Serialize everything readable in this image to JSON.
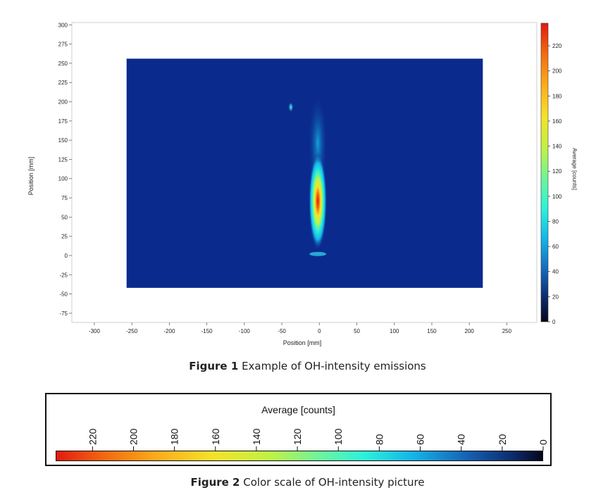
{
  "figure1": {
    "caption_label": "Figure 1",
    "caption_text": "Example of OH-intensity emissions"
  },
  "figure2": {
    "caption_label": "Figure 2",
    "caption_text": "Color scale of OH-intensity picture",
    "title": "Average [counts]",
    "ticks": [
      "220",
      "200",
      "180",
      "160",
      "140",
      "120",
      "100",
      "80",
      "60",
      "40",
      "20",
      "0"
    ]
  },
  "chart_data": {
    "type": "heatmap",
    "xlabel": "Position [mm]",
    "ylabel": "Position [mm]",
    "colorbar_label": "Average [counts]",
    "xlim": [
      -330,
      290
    ],
    "ylim": [
      -87,
      303
    ],
    "xticks": [
      -300,
      -250,
      -200,
      -150,
      -100,
      -50,
      0,
      50,
      100,
      150,
      200,
      250
    ],
    "yticks": [
      300,
      275,
      250,
      225,
      200,
      175,
      150,
      125,
      100,
      75,
      50,
      25,
      0,
      -25,
      -50,
      -75
    ],
    "colorbar_range": [
      0,
      238
    ],
    "colorbar_ticks": [
      220,
      200,
      180,
      160,
      140,
      120,
      100,
      80,
      60,
      40,
      20,
      0
    ],
    "image_extent": {
      "x": [
        -257,
        218
      ],
      "y": [
        -42,
        256
      ]
    },
    "background_level": 10,
    "features": [
      {
        "name": "flame",
        "x_center": -2,
        "y_base": 2,
        "y_top": 180,
        "peak_y": 72,
        "peak_value": 230
      },
      {
        "name": "spot",
        "x": -38,
        "y": 193,
        "value": 80
      }
    ],
    "grid": false,
    "colormap": [
      "#05061e",
      "#0d2a6a",
      "#1665b8",
      "#16b6e8",
      "#2ef2d8",
      "#6ff49a",
      "#bff246",
      "#f5e12a",
      "#fba81a",
      "#f16a10",
      "#e31a0f"
    ]
  }
}
